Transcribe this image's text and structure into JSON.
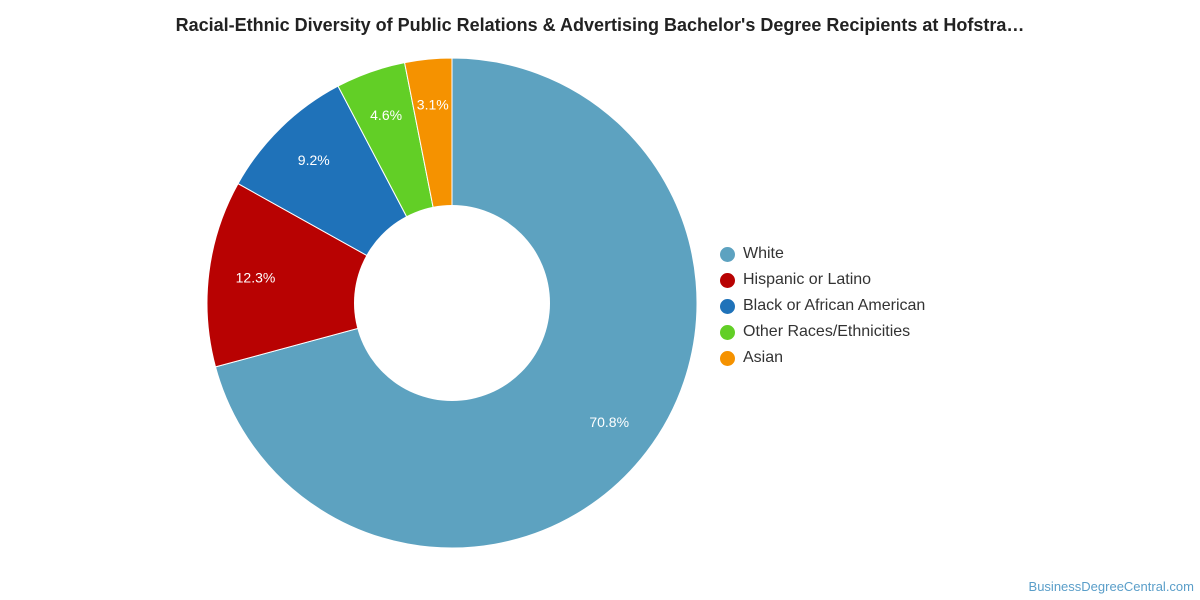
{
  "chart_data": {
    "type": "pie",
    "title": "Racial-Ethnic Diversity of Public Relations & Advertising Bachelor's Degree Recipients at Hofstra…",
    "slices": [
      {
        "name": "White",
        "value": 70.8,
        "label": "70.8%",
        "color": "#5da2c0"
      },
      {
        "name": "Hispanic or Latino",
        "value": 12.3,
        "label": "12.3%",
        "color": "#b80202"
      },
      {
        "name": "Black or African American",
        "value": 9.2,
        "label": "9.2%",
        "color": "#1f72b9"
      },
      {
        "name": "Other Races/Ethnicities",
        "value": 4.6,
        "label": "4.6%",
        "color": "#62cf26"
      },
      {
        "name": "Asian",
        "value": 3.1,
        "label": "3.1%",
        "color": "#f59200"
      }
    ],
    "donut": true,
    "legend_position": "right"
  },
  "credit": "BusinessDegreeCentral.com"
}
